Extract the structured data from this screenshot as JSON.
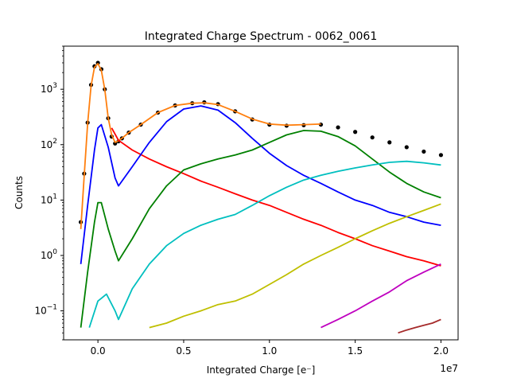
{
  "chart_data": {
    "type": "line",
    "title": "Integrated Charge Spectrum - 0062_0061",
    "xlabel": "Integrated Charge [e⁻]",
    "ylabel": "Counts",
    "x_scale_note": "1e7",
    "xlim": [
      -0.2,
      2.1
    ],
    "ylim": [
      0.03,
      6000
    ],
    "yscale": "log",
    "x_ticks": [
      {
        "value": 0.0,
        "label": "0.0"
      },
      {
        "value": 0.5,
        "label": "0.5"
      },
      {
        "value": 1.0,
        "label": "1.0"
      },
      {
        "value": 1.5,
        "label": "1.5"
      },
      {
        "value": 2.0,
        "label": "2.0"
      }
    ],
    "y_ticks": [
      {
        "value": 0.1,
        "base": "10",
        "exp": "−1"
      },
      {
        "value": 1,
        "base": "10",
        "exp": "0"
      },
      {
        "value": 10,
        "base": "10",
        "exp": "1"
      },
      {
        "value": 100,
        "base": "10",
        "exp": "2"
      },
      {
        "value": 1000,
        "base": "10",
        "exp": "3"
      }
    ],
    "grid": false,
    "legend": "none",
    "colors": {
      "data": "#000000",
      "total_fit": "#ff7f0e",
      "pedestal": "#ff0000",
      "pe1": "#0000ff",
      "pe2": "#008000",
      "pe3": "#00bfbf",
      "pe4": "#bfbf00",
      "pe5": "#bf00bf",
      "pe6": "#a52a2a"
    },
    "series": [
      {
        "key": "data",
        "style": "points",
        "x": [
          -0.1,
          -0.08,
          -0.06,
          -0.04,
          -0.02,
          0.0,
          0.02,
          0.04,
          0.06,
          0.08,
          0.1,
          0.12,
          0.14,
          0.18,
          0.25,
          0.35,
          0.45,
          0.55,
          0.62,
          0.7,
          0.8,
          0.9,
          1.0,
          1.1,
          1.2,
          1.3,
          1.4,
          1.5,
          1.6,
          1.7,
          1.8,
          1.9,
          2.0
        ],
        "y": [
          4,
          30,
          250,
          1200,
          2600,
          3000,
          2300,
          1000,
          300,
          140,
          105,
          115,
          130,
          165,
          230,
          380,
          510,
          560,
          580,
          540,
          400,
          285,
          230,
          220,
          225,
          230,
          205,
          170,
          135,
          110,
          90,
          75,
          65
        ]
      },
      {
        "key": "total_fit",
        "style": "line",
        "x": [
          -0.1,
          -0.08,
          -0.06,
          -0.04,
          -0.02,
          0.0,
          0.02,
          0.04,
          0.06,
          0.08,
          0.1,
          0.12,
          0.14,
          0.18,
          0.25,
          0.35,
          0.45,
          0.55,
          0.62,
          0.7,
          0.8,
          0.9,
          1.0,
          1.1,
          1.2,
          1.3
        ],
        "y": [
          3,
          28,
          240,
          1150,
          2500,
          2900,
          2200,
          980,
          300,
          150,
          110,
          118,
          130,
          165,
          230,
          380,
          510,
          560,
          570,
          530,
          400,
          290,
          235,
          225,
          230,
          235
        ]
      },
      {
        "key": "pedestal",
        "style": "line",
        "x": [
          0.08,
          0.12,
          0.2,
          0.3,
          0.4,
          0.5,
          0.6,
          0.7,
          0.8,
          0.9,
          1.0,
          1.1,
          1.2,
          1.3,
          1.4,
          1.5,
          1.6,
          1.7,
          1.8,
          1.9,
          2.0
        ],
        "y": [
          200,
          120,
          80,
          55,
          40,
          30,
          22,
          17,
          13,
          10,
          8,
          6,
          4.5,
          3.5,
          2.6,
          2,
          1.5,
          1.2,
          0.95,
          0.8,
          0.65
        ]
      },
      {
        "key": "pe1",
        "style": "line",
        "x": [
          -0.1,
          -0.06,
          -0.02,
          0.0,
          0.02,
          0.06,
          0.1,
          0.12,
          0.2,
          0.3,
          0.4,
          0.5,
          0.6,
          0.7,
          0.8,
          0.9,
          1.0,
          1.1,
          1.2,
          1.3,
          1.4,
          1.5,
          1.6,
          1.7,
          1.8,
          1.9,
          2.0
        ],
        "y": [
          0.7,
          8,
          80,
          200,
          230,
          90,
          25,
          18,
          40,
          110,
          260,
          440,
          500,
          420,
          250,
          130,
          70,
          42,
          28,
          20,
          14,
          10,
          8,
          6,
          5,
          4,
          3.5
        ]
      },
      {
        "key": "pe2",
        "style": "line",
        "x": [
          -0.1,
          -0.06,
          -0.02,
          0.0,
          0.02,
          0.06,
          0.1,
          0.12,
          0.2,
          0.3,
          0.4,
          0.5,
          0.6,
          0.7,
          0.8,
          0.9,
          1.0,
          1.1,
          1.2,
          1.3,
          1.4,
          1.5,
          1.6,
          1.7,
          1.8,
          1.9,
          2.0
        ],
        "y": [
          0.05,
          0.5,
          4,
          9,
          9,
          3,
          1.2,
          0.8,
          2,
          7,
          18,
          35,
          45,
          55,
          65,
          80,
          110,
          150,
          180,
          175,
          140,
          95,
          55,
          32,
          20,
          14,
          11
        ]
      },
      {
        "key": "pe3",
        "style": "line",
        "x": [
          -0.05,
          0.0,
          0.05,
          0.1,
          0.12,
          0.2,
          0.3,
          0.4,
          0.5,
          0.6,
          0.7,
          0.8,
          0.9,
          1.0,
          1.1,
          1.2,
          1.3,
          1.4,
          1.5,
          1.6,
          1.7,
          1.8,
          1.9,
          2.0
        ],
        "y": [
          0.05,
          0.15,
          0.2,
          0.1,
          0.07,
          0.25,
          0.7,
          1.5,
          2.5,
          3.5,
          4.5,
          5.5,
          8,
          12,
          17,
          23,
          28,
          33,
          38,
          43,
          48,
          50,
          47,
          43
        ]
      },
      {
        "key": "pe4",
        "style": "line",
        "x": [
          0.3,
          0.4,
          0.5,
          0.6,
          0.7,
          0.8,
          0.9,
          1.0,
          1.1,
          1.2,
          1.3,
          1.4,
          1.5,
          1.6,
          1.7,
          1.8,
          1.9,
          2.0
        ],
        "y": [
          0.05,
          0.06,
          0.08,
          0.1,
          0.13,
          0.15,
          0.2,
          0.3,
          0.45,
          0.7,
          1.0,
          1.4,
          2.0,
          2.8,
          3.8,
          5.0,
          6.5,
          8.5
        ]
      },
      {
        "key": "pe5",
        "style": "line",
        "x": [
          1.3,
          1.4,
          1.5,
          1.6,
          1.7,
          1.8,
          1.9,
          2.0
        ],
        "y": [
          0.05,
          0.07,
          0.1,
          0.15,
          0.22,
          0.35,
          0.5,
          0.7
        ]
      },
      {
        "key": "pe6",
        "style": "line",
        "x": [
          1.75,
          1.8,
          1.85,
          1.9,
          1.95,
          2.0
        ],
        "y": [
          0.04,
          0.045,
          0.05,
          0.055,
          0.06,
          0.07
        ]
      }
    ]
  }
}
